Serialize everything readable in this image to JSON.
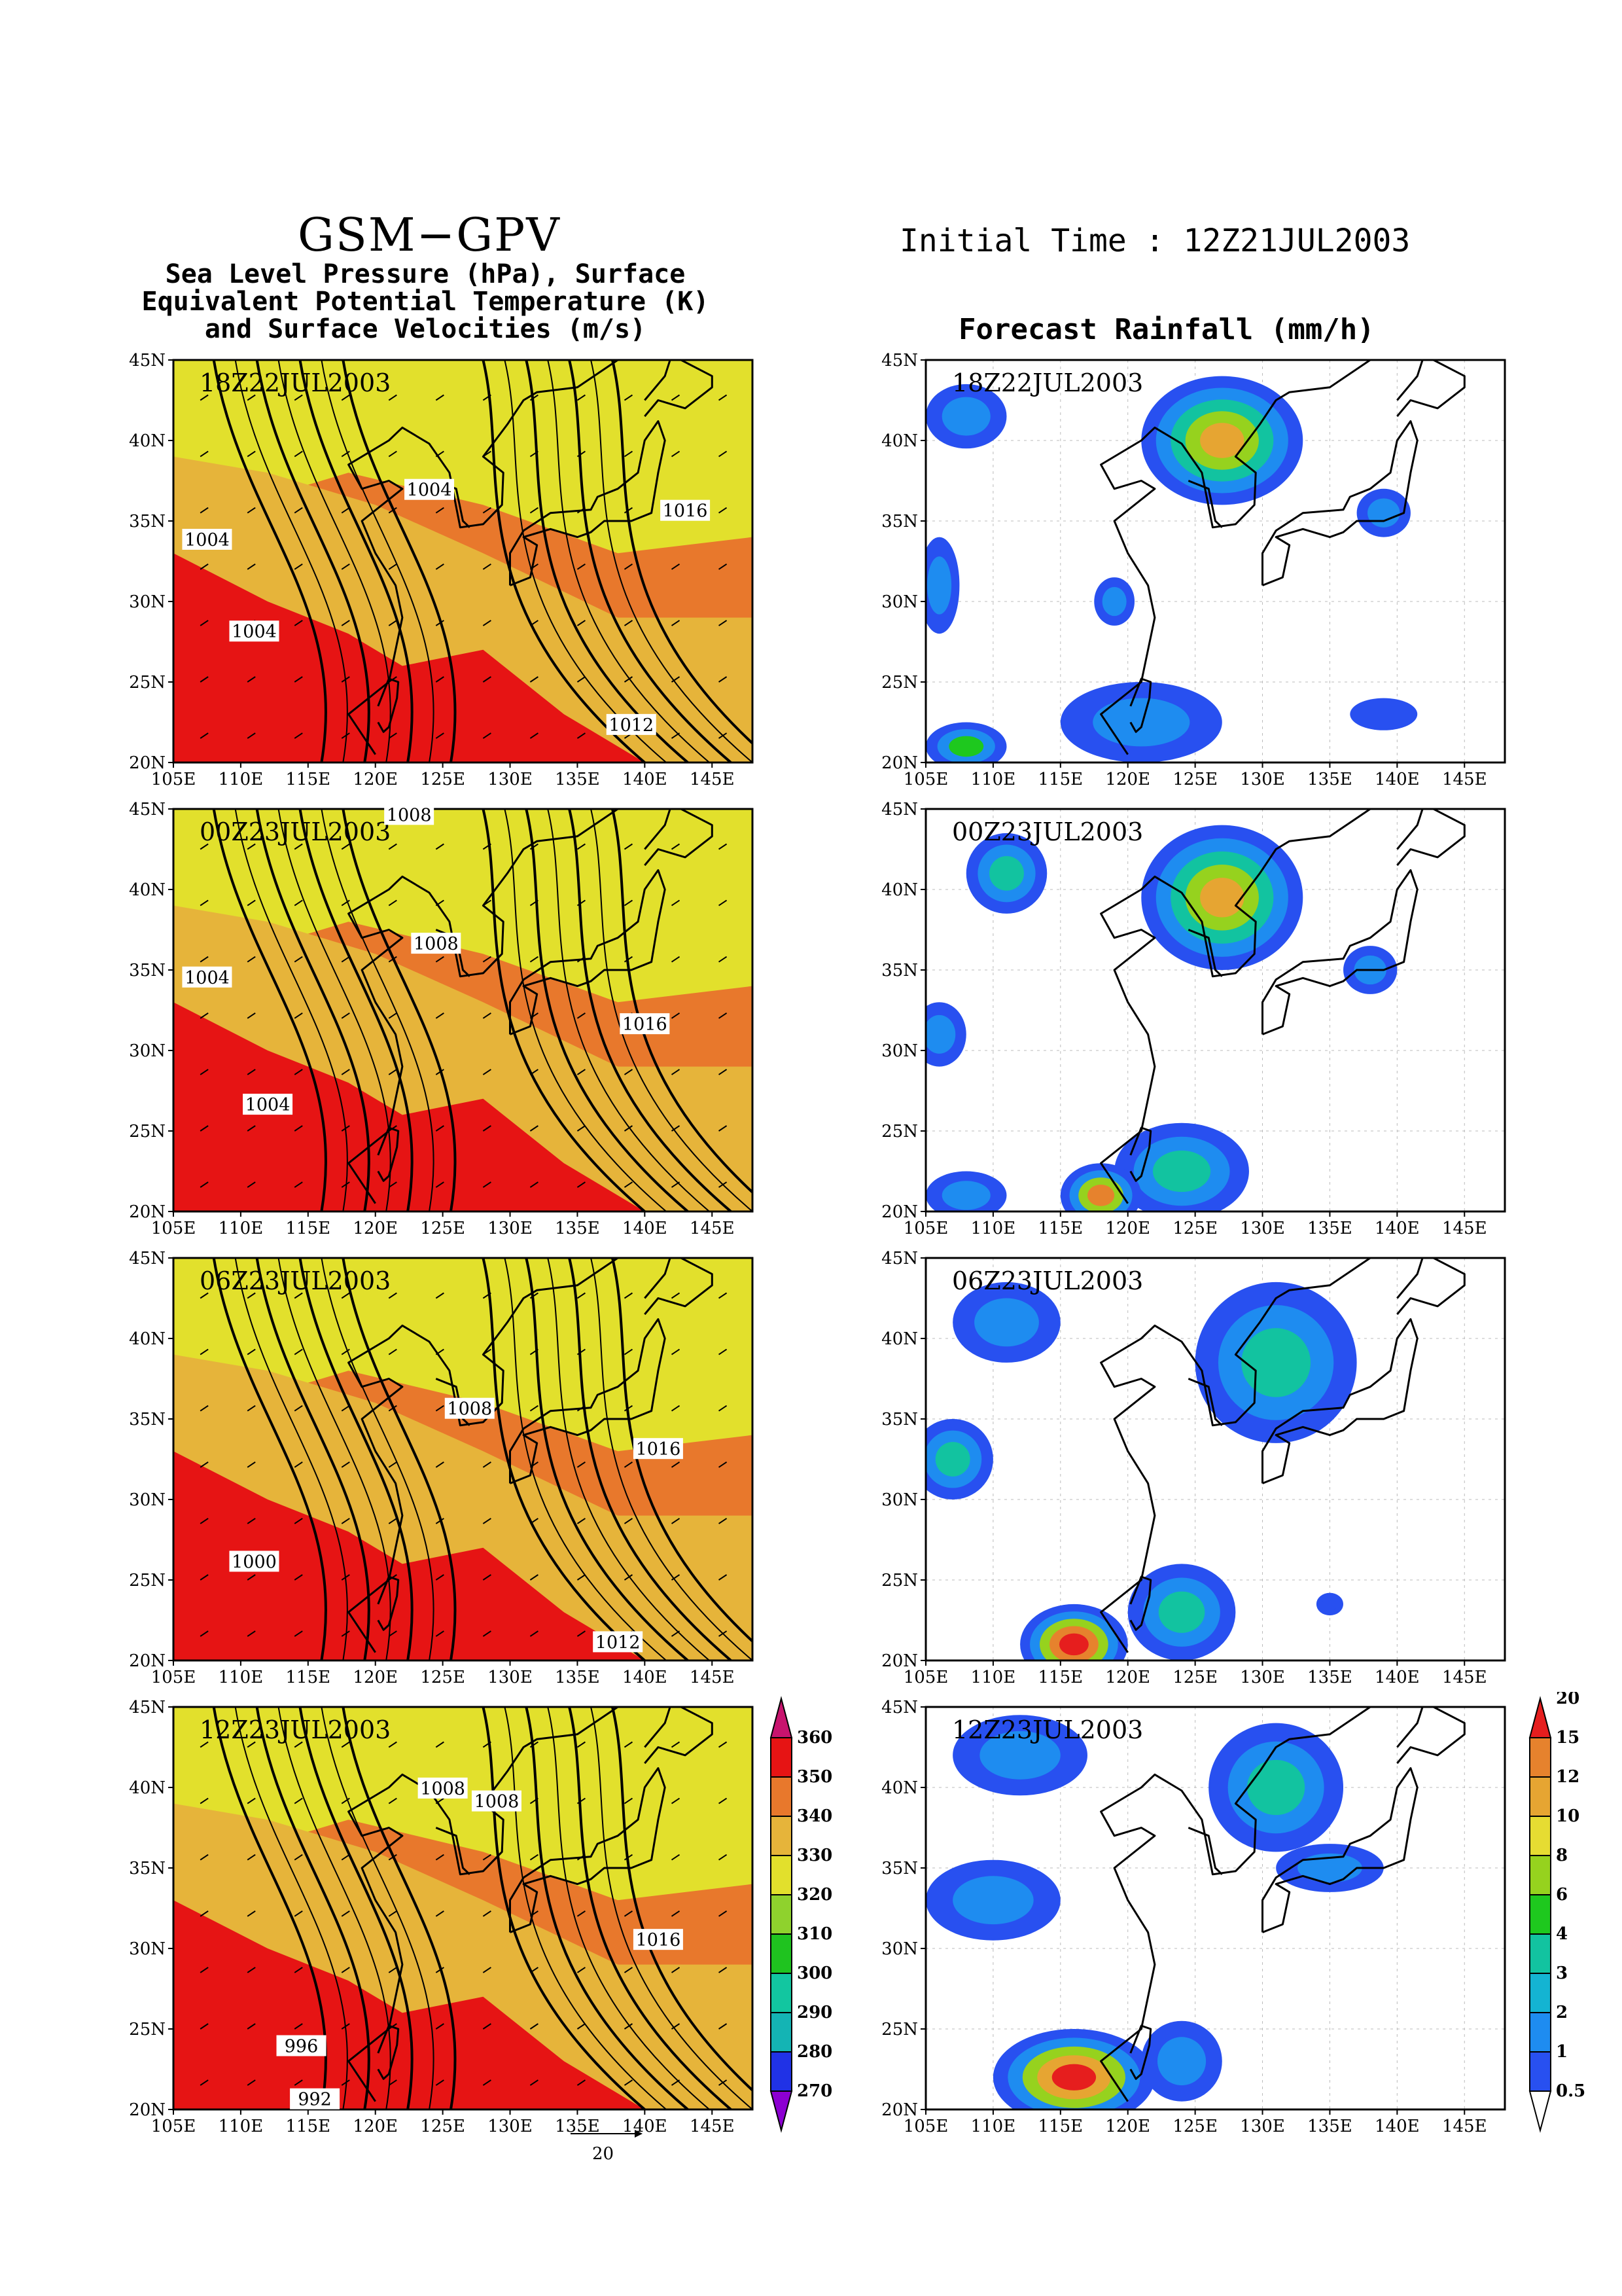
{
  "header": {
    "model": "GSM−GPV",
    "initial_time": "Initial Time : 12Z21JUL2003",
    "left_title_lines": [
      "Sea Level Pressure (hPa), Surface",
      "Equivalent Potential Temperature (K)",
      "and Surface Velocities (m/s)"
    ],
    "right_title": "Forecast Rainfall (mm/h)"
  },
  "axes": {
    "lat_ticks": [
      "20N",
      "25N",
      "30N",
      "35N",
      "40N",
      "45N"
    ],
    "lon_ticks": [
      "105E",
      "110E",
      "115E",
      "120E",
      "125E",
      "130E",
      "135E",
      "140E",
      "145E"
    ]
  },
  "panels": [
    {
      "time": "18Z22JUL2003",
      "pressure_labels": [
        "1004",
        "1016",
        "1004",
        "1004",
        "1012"
      ]
    },
    {
      "time": "00Z23JUL2003",
      "pressure_labels": [
        "1008",
        "1008",
        "1004",
        "1016",
        "1004"
      ]
    },
    {
      "time": "06Z23JUL2003",
      "pressure_labels": [
        "1008",
        "1016",
        "1000",
        "1012"
      ]
    },
    {
      "time": "12Z23JUL2003",
      "pressure_labels": [
        "1008",
        "1008",
        "1016",
        "996",
        "992"
      ]
    }
  ],
  "theta_colorbar": {
    "levels": [
      "270",
      "280",
      "290",
      "300",
      "310",
      "320",
      "330",
      "340",
      "350",
      "360"
    ],
    "colors": [
      "#8c00d2",
      "#2032e6",
      "#14b4b4",
      "#12c6a0",
      "#1fc31f",
      "#8fd22d",
      "#e2e02c",
      "#e6b43a",
      "#e8782c",
      "#e61414",
      "#c8146e"
    ]
  },
  "rain_colorbar": {
    "levels": [
      "0.5",
      "1",
      "2",
      "3",
      "4",
      "6",
      "8",
      "10",
      "12",
      "15",
      "20"
    ],
    "colors": [
      "#2850f0",
      "#1e8cf0",
      "#14b4d2",
      "#12c3a0",
      "#1ec81e",
      "#96d21e",
      "#e6dc32",
      "#e6a532",
      "#e6822d",
      "#e61e1e"
    ]
  },
  "vector_reference": {
    "label": "20"
  }
}
